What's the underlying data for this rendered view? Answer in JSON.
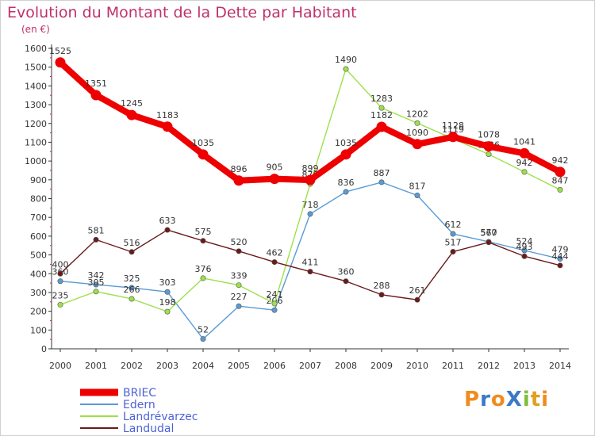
{
  "title": "Evolution du Montant de la Dette par Habitant",
  "subtitle": "(en €)",
  "logo": {
    "text": "ProXiti",
    "letters": [
      "P",
      "r",
      "o",
      "X",
      "i",
      "t",
      "i"
    ],
    "colors": [
      "#f08b1e",
      "#3a79c8",
      "#f08b1e",
      "#3a79c8",
      "#7dbf3a",
      "#e0a020",
      "#f08b1e"
    ]
  },
  "chart_data": {
    "type": "line",
    "title": "Evolution du Montant de la Dette par Habitant",
    "ylabel": "(en €)",
    "xlabel": "",
    "ylim": [
      0,
      1600
    ],
    "yticks": [
      0,
      100,
      200,
      300,
      400,
      500,
      600,
      700,
      800,
      900,
      1000,
      1100,
      1200,
      1300,
      1400,
      1500,
      1600
    ],
    "categories": [
      "2000",
      "2001",
      "2002",
      "2003",
      "2004",
      "2005",
      "2006",
      "2007",
      "2008",
      "2009",
      "2010",
      "2011",
      "2012",
      "2013",
      "2014"
    ],
    "legend_position": "bottom-left",
    "grid": false,
    "series": [
      {
        "name": "BRIEC",
        "color": "#ee0000",
        "values": [
          1525,
          1351,
          1245,
          1183,
          1035,
          896,
          905,
          899,
          1035,
          1182,
          1090,
          1128,
          1078,
          1041,
          942
        ]
      },
      {
        "name": "Edern",
        "color": "#5a9bd4",
        "values": [
          360,
          342,
          325,
          303,
          52,
          227,
          206,
          718,
          836,
          887,
          817,
          612,
          570,
          524,
          479
        ]
      },
      {
        "name": "Landrévarzec",
        "color": "#9ee04a",
        "values": [
          235,
          305,
          266,
          198,
          376,
          339,
          241,
          878,
          1490,
          1283,
          1202,
          1119,
          1036,
          942,
          847
        ]
      },
      {
        "name": "Landudal",
        "color": "#6b1a1a",
        "values": [
          400,
          581,
          516,
          633,
          575,
          520,
          462,
          411,
          360,
          288,
          261,
          517,
          567,
          493,
          444
        ]
      }
    ]
  }
}
